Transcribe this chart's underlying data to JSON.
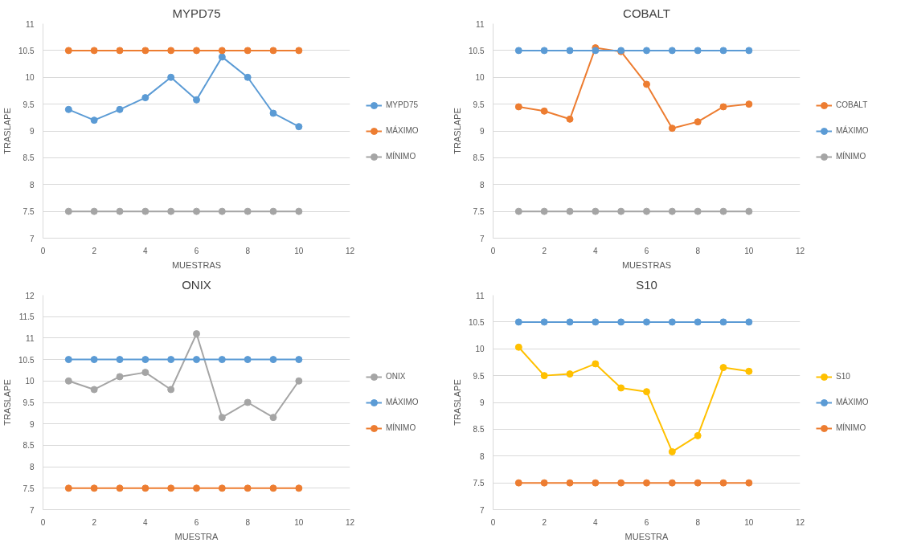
{
  "chart_data": [
    {
      "type": "line",
      "title": "MYPD75",
      "xlabel": "MUESTRAS",
      "ylabel": "TRASLAPE",
      "x": [
        1,
        2,
        3,
        4,
        5,
        6,
        7,
        8,
        9,
        10
      ],
      "xlim": [
        0,
        12
      ],
      "xticks": [
        0,
        2,
        4,
        6,
        8,
        10,
        12
      ],
      "ylim": [
        7,
        11
      ],
      "yticks": [
        7,
        7.5,
        8,
        8.5,
        9,
        9.5,
        10,
        10.5,
        11
      ],
      "grid": "y",
      "legend": "right",
      "marker": "circle",
      "series": [
        {
          "name": "MYPD75",
          "color": "#5b9bd5",
          "values": [
            9.4,
            9.2,
            9.4,
            9.62,
            10.0,
            9.58,
            10.38,
            10.0,
            9.33,
            9.08
          ]
        },
        {
          "name": "MÁXIMO",
          "color": "#ed7d31",
          "values": [
            10.5,
            10.5,
            10.5,
            10.5,
            10.5,
            10.5,
            10.5,
            10.5,
            10.5,
            10.5
          ]
        },
        {
          "name": "MÍNIMO",
          "color": "#a5a5a5",
          "values": [
            7.5,
            7.5,
            7.5,
            7.5,
            7.5,
            7.5,
            7.5,
            7.5,
            7.5,
            7.5
          ]
        }
      ]
    },
    {
      "type": "line",
      "title": "COBALT",
      "xlabel": "MUESTRAS",
      "ylabel": "TRASLAPE",
      "x": [
        1,
        2,
        3,
        4,
        5,
        6,
        7,
        8,
        9,
        10
      ],
      "xlim": [
        0,
        12
      ],
      "xticks": [
        0,
        2,
        4,
        6,
        8,
        10,
        12
      ],
      "ylim": [
        7,
        11
      ],
      "yticks": [
        7,
        7.5,
        8,
        8.5,
        9,
        9.5,
        10,
        10.5,
        11
      ],
      "grid": "y",
      "legend": "right",
      "marker": "circle",
      "series": [
        {
          "name": "COBALT",
          "color": "#ed7d31",
          "values": [
            9.45,
            9.37,
            9.22,
            10.55,
            10.48,
            9.87,
            9.05,
            9.17,
            9.45,
            9.5
          ]
        },
        {
          "name": "MÁXIMO",
          "color": "#5b9bd5",
          "values": [
            10.5,
            10.5,
            10.5,
            10.5,
            10.5,
            10.5,
            10.5,
            10.5,
            10.5,
            10.5
          ]
        },
        {
          "name": "MÍNIMO",
          "color": "#a5a5a5",
          "values": [
            7.5,
            7.5,
            7.5,
            7.5,
            7.5,
            7.5,
            7.5,
            7.5,
            7.5,
            7.5
          ]
        }
      ]
    },
    {
      "type": "line",
      "title": "ONIX",
      "xlabel": "MUESTRA",
      "ylabel": "TRASLAPE",
      "x": [
        1,
        2,
        3,
        4,
        5,
        6,
        7,
        8,
        9,
        10
      ],
      "xlim": [
        0,
        12
      ],
      "xticks": [
        0,
        2,
        4,
        6,
        8,
        10,
        12
      ],
      "ylim": [
        7,
        12
      ],
      "yticks": [
        7,
        7.5,
        8,
        8.5,
        9,
        9.5,
        10,
        10.5,
        11,
        11.5,
        12
      ],
      "grid": "y",
      "legend": "right",
      "marker": "circle",
      "series": [
        {
          "name": "ONIX",
          "color": "#a5a5a5",
          "values": [
            10.0,
            9.8,
            10.1,
            10.2,
            9.8,
            11.1,
            9.15,
            9.5,
            9.15,
            10.0
          ]
        },
        {
          "name": "MÁXIMO",
          "color": "#5b9bd5",
          "values": [
            10.5,
            10.5,
            10.5,
            10.5,
            10.5,
            10.5,
            10.5,
            10.5,
            10.5,
            10.5
          ]
        },
        {
          "name": "MÍNIMO",
          "color": "#ed7d31",
          "values": [
            7.5,
            7.5,
            7.5,
            7.5,
            7.5,
            7.5,
            7.5,
            7.5,
            7.5,
            7.5
          ]
        }
      ]
    },
    {
      "type": "line",
      "title": "S10",
      "xlabel": "MUESTRA",
      "ylabel": "TRASLAPE",
      "x": [
        1,
        2,
        3,
        4,
        5,
        6,
        7,
        8,
        9,
        10
      ],
      "xlim": [
        0,
        12
      ],
      "xticks": [
        0,
        2,
        4,
        6,
        8,
        10,
        12
      ],
      "ylim": [
        7,
        11
      ],
      "yticks": [
        7,
        7.5,
        8,
        8.5,
        9,
        9.5,
        10,
        10.5,
        11
      ],
      "grid": "y",
      "legend": "right",
      "marker": "circle",
      "series": [
        {
          "name": "S10",
          "color": "#ffc000",
          "values": [
            10.03,
            9.5,
            9.53,
            9.72,
            9.27,
            9.2,
            8.08,
            8.38,
            9.65,
            9.58
          ]
        },
        {
          "name": "MÁXIMO",
          "color": "#5b9bd5",
          "values": [
            10.5,
            10.5,
            10.5,
            10.5,
            10.5,
            10.5,
            10.5,
            10.5,
            10.5,
            10.5
          ]
        },
        {
          "name": "MÍNIMO",
          "color": "#ed7d31",
          "values": [
            7.5,
            7.5,
            7.5,
            7.5,
            7.5,
            7.5,
            7.5,
            7.5,
            7.5,
            7.5
          ]
        }
      ]
    }
  ]
}
